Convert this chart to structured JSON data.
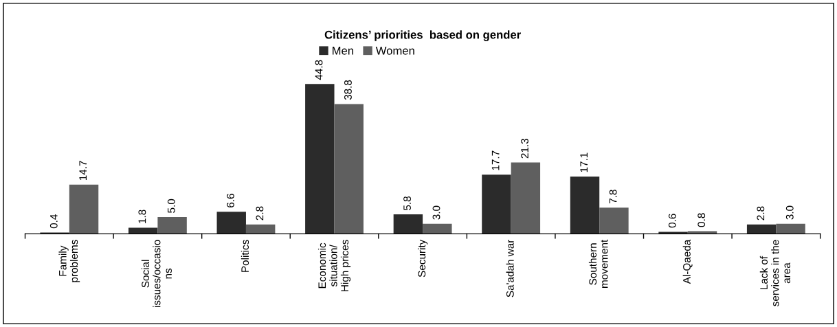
{
  "chart_data": {
    "type": "bar",
    "title": "Citizens’ priorities  based on gender",
    "categories": [
      "Family\nproblems",
      "Social\nissues/occasio\nns",
      "Politics",
      "Economic\nsituation/\nHigh prices",
      "Security",
      "Sa'adah war",
      "Southern\nmovement",
      "Al-Qaeda",
      "Lack of\nservices in the\narea"
    ],
    "series": [
      {
        "name": "Men",
        "color": "#2b2b2b",
        "values": [
          0.4,
          1.8,
          6.6,
          44.8,
          5.8,
          17.7,
          17.1,
          0.6,
          2.8
        ],
        "value_labels": [
          "0.4",
          "1.8",
          "6.6",
          "44.8",
          "5.8",
          "17.7",
          "17.1",
          "0.6",
          "2.8"
        ]
      },
      {
        "name": "Women",
        "color": "#5f5f5f",
        "values": [
          14.7,
          5.0,
          2.8,
          38.8,
          3.0,
          21.3,
          7.8,
          0.8,
          3.0
        ],
        "value_labels": [
          "14.7",
          "5.0",
          "2.8",
          "38.8",
          "3.0",
          "21.3",
          "7.8",
          "0.8",
          "3.0"
        ]
      }
    ],
    "legend": "top",
    "grid": false
  }
}
